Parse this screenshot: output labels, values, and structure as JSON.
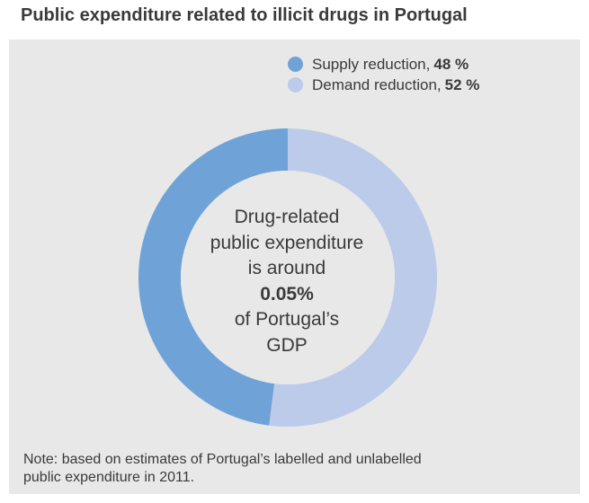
{
  "chart_data": {
    "type": "pie",
    "title": "Public expenditure related to illicit drugs in Portugal",
    "categories": [
      "Supply reduction",
      "Demand reduction"
    ],
    "values": [
      48,
      52
    ],
    "value_labels": [
      "48 %",
      "52 %"
    ],
    "colors": [
      "#6fa3d8",
      "#bccbea"
    ],
    "donut": true,
    "legend_placement": "top-right",
    "center_text": {
      "line1": "Drug-related",
      "line2": "public expenditure",
      "line3": "is around",
      "highlight": "0.05%",
      "line5": "of Portugal’s",
      "line6": "GDP"
    },
    "note_line1": "Note: based on estimates of Portugal’s labelled and unlabelled",
    "note_line2": "public expenditure in 2011."
  }
}
